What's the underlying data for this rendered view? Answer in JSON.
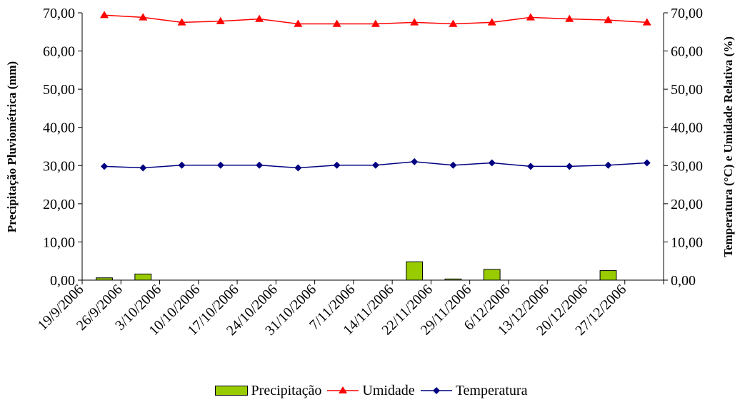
{
  "chart_data": {
    "type": "bar+line",
    "title": "",
    "ylabel_left": "Precipitação Pluviométrica (mm)",
    "ylabel_right": "Temperatura (°C) e Umidade Relativa (%)",
    "ylim": [
      0,
      70
    ],
    "yticks": [
      "0,00",
      "10,00",
      "20,00",
      "30,00",
      "40,00",
      "50,00",
      "60,00",
      "70,00"
    ],
    "xtick_labels": [
      "19/9/2006",
      "26/9/2006",
      "3/10/2006",
      "10/10/2006",
      "17/10/2006",
      "24/10/2006",
      "31/10/2006",
      "7/11/2006",
      "14/11/2006",
      "22/11/2006",
      "29/11/2006",
      "6/12/2006",
      "13/12/2006",
      "20/12/2006",
      "27/12/2006"
    ],
    "x": [
      "23/9/2006",
      "30/9/2006",
      "7/10/2006",
      "14/10/2006",
      "21/10/2006",
      "28/10/2006",
      "4/11/2006",
      "11/11/2006",
      "18/11/2006",
      "25/11/2006",
      "2/12/2006",
      "9/12/2006",
      "16/12/2006",
      "23/12/2006",
      "30/12/2006"
    ],
    "series": [
      {
        "name": "Precipitação",
        "type": "bar",
        "color": "#99CC00",
        "values": [
          0.6,
          1.6,
          0,
          0,
          0,
          0,
          0,
          0,
          4.8,
          0.3,
          2.8,
          0,
          0,
          2.5,
          0
        ]
      },
      {
        "name": "Umidade",
        "type": "line",
        "marker": "triangle",
        "color": "#FF0000",
        "values": [
          69.4,
          68.8,
          67.5,
          67.8,
          68.4,
          67.1,
          67.1,
          67.1,
          67.5,
          67.1,
          67.5,
          68.8,
          68.4,
          68.1,
          67.5
        ]
      },
      {
        "name": "Temperatura",
        "type": "line",
        "marker": "diamond",
        "color": "#000080",
        "values": [
          29.8,
          29.4,
          30.1,
          30.1,
          30.1,
          29.4,
          30.1,
          30.1,
          31.0,
          30.1,
          30.7,
          29.8,
          29.8,
          30.1,
          30.7
        ]
      }
    ],
    "legend_position": "bottom"
  }
}
